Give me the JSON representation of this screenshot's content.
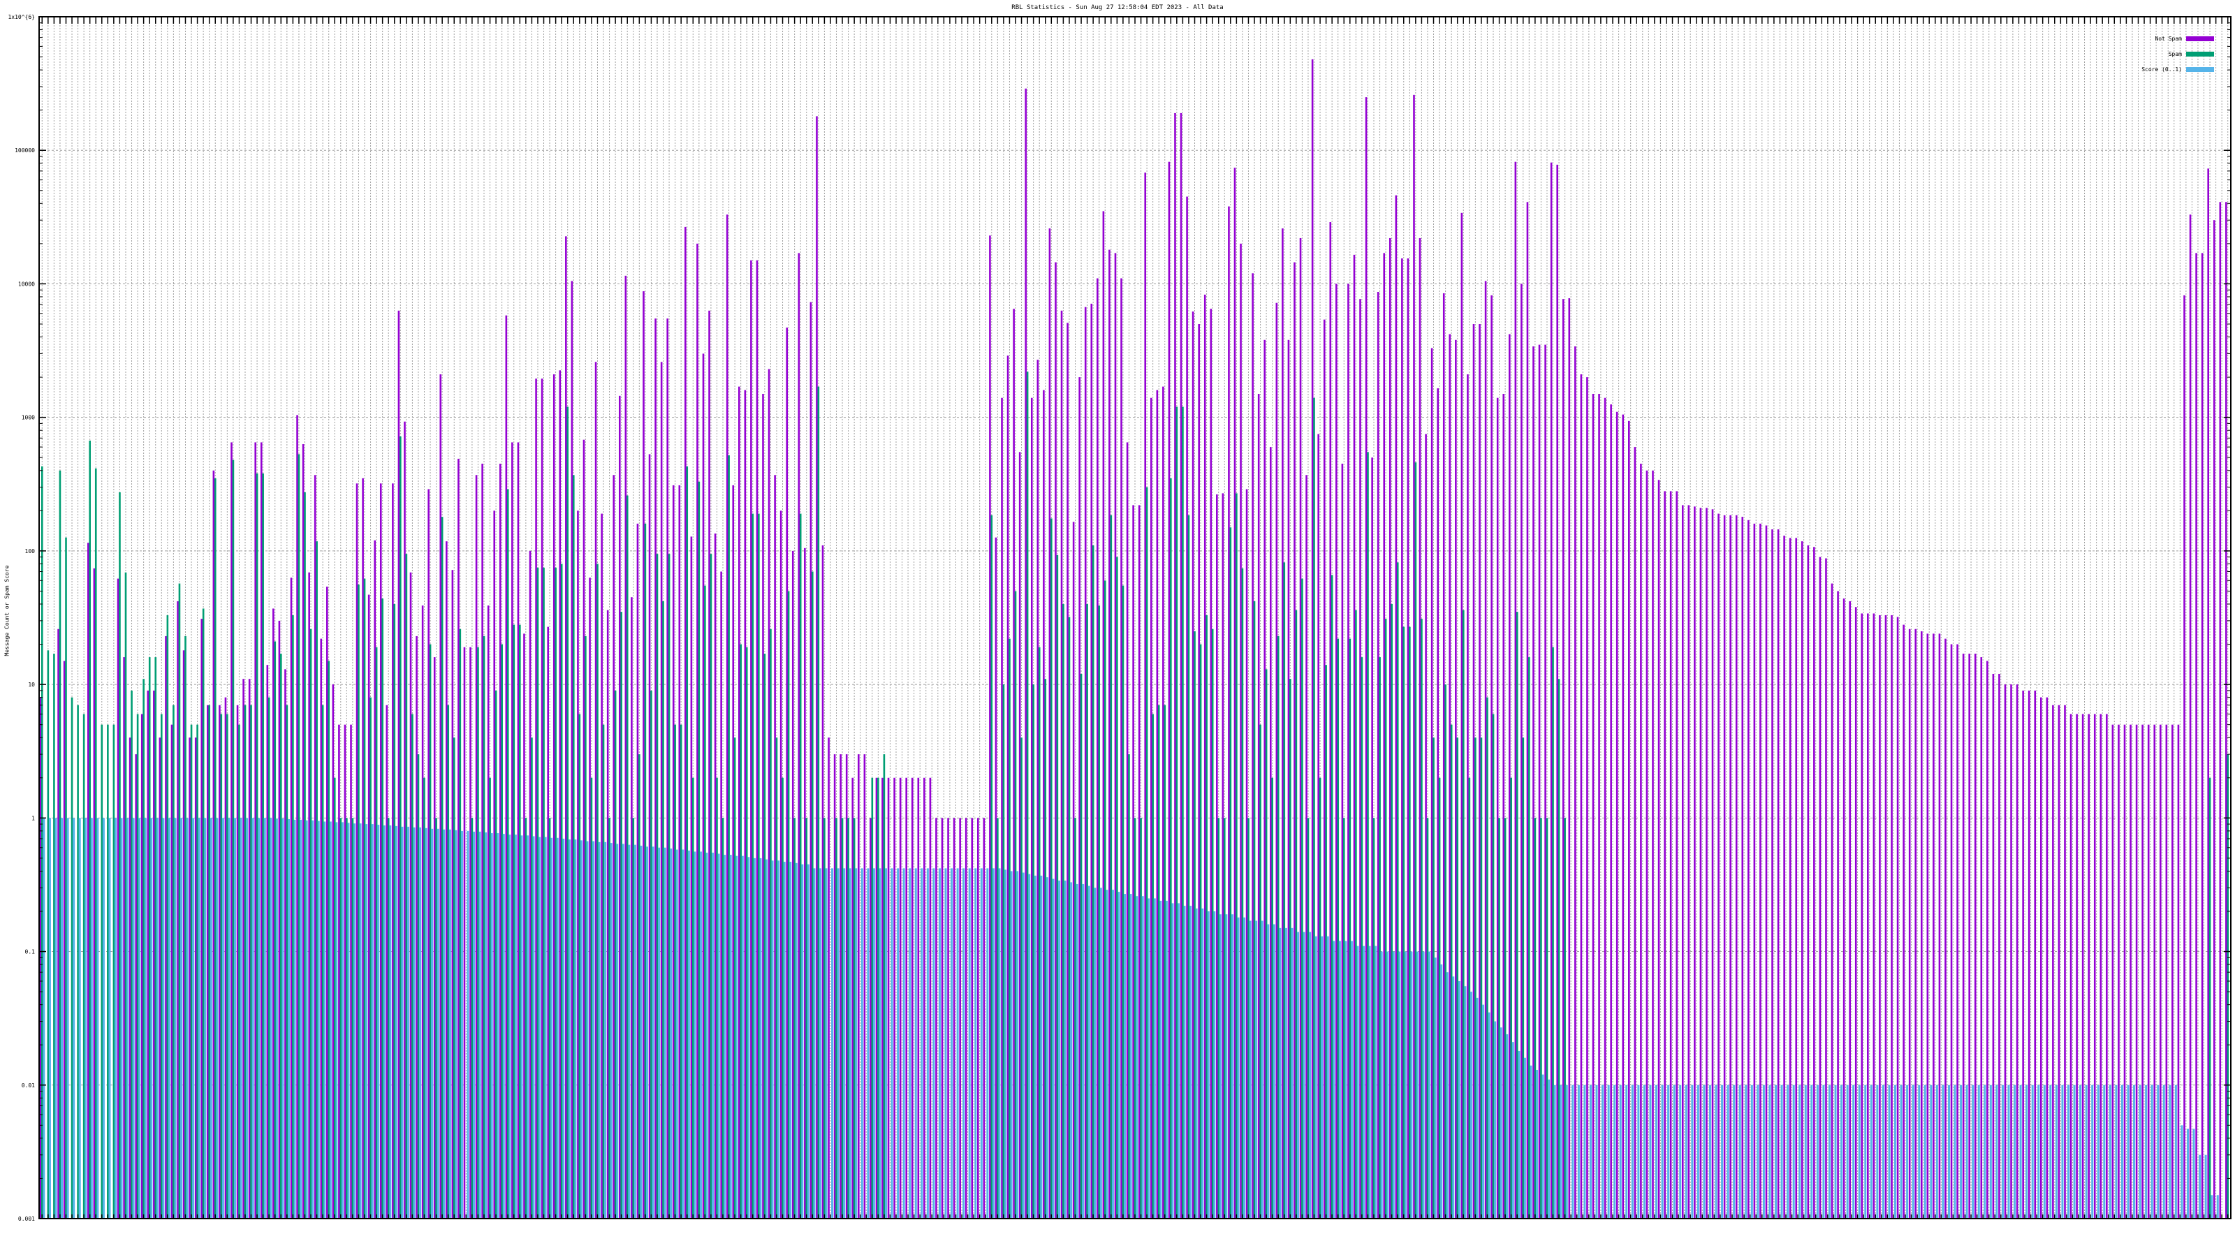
{
  "chart_data": {
    "type": "bar",
    "title": "RBL Statistics - Sun Aug 27 12:58:04 EDT 2023 - All Data",
    "xlabel": "",
    "ylabel": "Message Count or Spam Score",
    "yscale": "log",
    "ylim": [
      0.001,
      1000000
    ],
    "yticks": [
      "0.001",
      "0.01",
      "0.1",
      "1",
      "10",
      "100",
      "1000",
      "10000",
      "100000",
      "1x10^{6}"
    ],
    "grid": true,
    "legend_position": "top-right",
    "series": [
      {
        "name": "Not Spam",
        "color": "#9400d3",
        "values": [
          8,
          0,
          0,
          26,
          15,
          0,
          0,
          0,
          115,
          74,
          0,
          0,
          0,
          62,
          16,
          4,
          3,
          6,
          9,
          9,
          4,
          23,
          5,
          42,
          18,
          4,
          4,
          31,
          7,
          400,
          7,
          8,
          650,
          7,
          11,
          11,
          650,
          650,
          14,
          37,
          30,
          13,
          63,
          1040,
          630,
          69,
          370,
          22,
          54,
          10,
          5,
          5,
          5,
          320,
          350,
          47,
          120,
          320,
          7,
          320,
          6300,
          930,
          69,
          23,
          39,
          290,
          16,
          2100,
          118,
          72,
          490,
          19,
          19,
          370,
          450,
          39,
          200,
          450,
          5800,
          650,
          650,
          24,
          100,
          1950,
          1950,
          27,
          2100,
          2250,
          22700,
          10500,
          200,
          680,
          63,
          2600,
          190,
          36,
          370,
          1450,
          11500,
          45,
          160,
          8800,
          530,
          5500,
          2600,
          5500,
          310,
          310,
          26700,
          128,
          20000,
          3000,
          6300,
          135,
          70,
          33000,
          310,
          1700,
          1600,
          15000,
          15000,
          1500,
          2300,
          370,
          200,
          4700,
          100,
          17000,
          105,
          7300,
          180000,
          110,
          4,
          3,
          3,
          3,
          2,
          3,
          3,
          1,
          2,
          2,
          2,
          2,
          2,
          2,
          2,
          2,
          2,
          2,
          1,
          1,
          1,
          1,
          1,
          1,
          1,
          1,
          1,
          23000,
          126,
          1400,
          2900,
          6500,
          550,
          290000,
          1400,
          2700,
          1600,
          26000,
          14500,
          6300,
          5100,
          165,
          2000,
          6700,
          7100,
          11000,
          35000,
          18000,
          17000,
          11000,
          650,
          220,
          220,
          68000,
          1400,
          1600,
          1700,
          82000,
          190000,
          190000,
          45000,
          6200,
          5000,
          8300,
          6500,
          265,
          270,
          38000,
          74000,
          20000,
          290,
          12000,
          1500,
          3800,
          600,
          7200,
          26000,
          3800,
          14500,
          22000,
          370,
          480000,
          750,
          5400,
          29000,
          10000,
          450,
          10000,
          16500,
          7700,
          250000,
          500,
          8700,
          17000,
          22000,
          46000,
          15500,
          15500,
          260000,
          22000,
          750,
          3300,
          1650,
          8500,
          4200,
          3800,
          34000,
          2100,
          5000,
          5000,
          10500,
          8200,
          1400,
          1500,
          4200,
          82000,
          10000,
          41000,
          3400,
          3500,
          3500,
          81000,
          78000,
          7700,
          7800,
          3400,
          2100,
          2000,
          1500,
          1500,
          1400,
          1250,
          1100,
          1050,
          940,
          600,
          450,
          400,
          400,
          340,
          280,
          280,
          280,
          220,
          220,
          215,
          210,
          210,
          205,
          190,
          185,
          185,
          185,
          180,
          170,
          160,
          160,
          155,
          145,
          145,
          130,
          125,
          125,
          118,
          110,
          107,
          90,
          88,
          57,
          50,
          44,
          42,
          38,
          34,
          34,
          34,
          33,
          33,
          33,
          32,
          28,
          26,
          26,
          25,
          24,
          24,
          24,
          22,
          20,
          20,
          17,
          17,
          17,
          16,
          15,
          12,
          12,
          10,
          10,
          10,
          9,
          9,
          9,
          8,
          8,
          7,
          7,
          7,
          6,
          6,
          6,
          6,
          6,
          6,
          6,
          5,
          5,
          5,
          5,
          5,
          5,
          5,
          5,
          5,
          5,
          5,
          5,
          8200,
          33000,
          17000,
          17000,
          73000,
          30000,
          41000,
          41000
        ]
      },
      {
        "name": "Spam",
        "color": "#009e73",
        "values": [
          430,
          18,
          17,
          400,
          126,
          8,
          7,
          6,
          670,
          415,
          5,
          5,
          5,
          275,
          69,
          9,
          6,
          11,
          16,
          16,
          6,
          33,
          7,
          57,
          23,
          5,
          5,
          37,
          7,
          350,
          6,
          6,
          480,
          5,
          7,
          7,
          380,
          380,
          8,
          21,
          17,
          7,
          33,
          530,
          275,
          26,
          118,
          7,
          15,
          2,
          1,
          1,
          1,
          56,
          62,
          8,
          19,
          44,
          1,
          40,
          720,
          95,
          6,
          3,
          2,
          20,
          1,
          180,
          7,
          4,
          26,
          0,
          1,
          19,
          23,
          2,
          9,
          20,
          290,
          28,
          28,
          1,
          4,
          75,
          75,
          1,
          75,
          80,
          1200,
          370,
          6,
          23,
          2,
          80,
          5,
          1,
          9,
          35,
          260,
          1,
          3,
          160,
          9,
          95,
          42,
          95,
          5,
          5,
          430,
          2,
          330,
          55,
          95,
          2,
          1,
          520,
          4,
          20,
          19,
          190,
          190,
          17,
          26,
          4,
          2,
          50,
          1,
          190,
          1,
          70,
          1700,
          1,
          0,
          1,
          1,
          1,
          1,
          0,
          0,
          2,
          2,
          3,
          0,
          0,
          0,
          0,
          0,
          0,
          0,
          0,
          0,
          0,
          0,
          0,
          0,
          0,
          0,
          0,
          0,
          185,
          1,
          10,
          22,
          50,
          4,
          2200,
          10,
          19,
          11,
          175,
          93,
          40,
          32,
          1,
          12,
          40,
          110,
          39,
          60,
          185,
          90,
          55,
          3,
          1,
          1,
          300,
          6,
          7,
          7,
          350,
          1200,
          1200,
          185,
          25,
          20,
          33,
          26,
          1,
          1,
          150,
          270,
          74,
          1,
          42,
          5,
          13,
          2,
          23,
          82,
          11,
          36,
          62,
          1,
          1400,
          2,
          14,
          66,
          22,
          1,
          22,
          36,
          16,
          550,
          1,
          16,
          31,
          40,
          82,
          27,
          27,
          460,
          31,
          1,
          4,
          2,
          10,
          5,
          4,
          36,
          2,
          4,
          4,
          8,
          6,
          1,
          1,
          2,
          35,
          4,
          16,
          1,
          1,
          1,
          19,
          11,
          1,
          0,
          0,
          0,
          0,
          0,
          0,
          0,
          0,
          0,
          0,
          0,
          0,
          0,
          0,
          0,
          0,
          0,
          0,
          0,
          0,
          0,
          0,
          0,
          0,
          0,
          0,
          0,
          0,
          0,
          0,
          0,
          0,
          0,
          0,
          0,
          0,
          0,
          0,
          0,
          0,
          0,
          0,
          0,
          0,
          0,
          0,
          0,
          0,
          0,
          0,
          0,
          0,
          0,
          0,
          0,
          0,
          0,
          0,
          0,
          0,
          0,
          0,
          0,
          0,
          0,
          0,
          0,
          0,
          0,
          0,
          0,
          0,
          0,
          0,
          0,
          0,
          0,
          0,
          0,
          0,
          0,
          0,
          0,
          0,
          0,
          0,
          0,
          0,
          0,
          0,
          0,
          0,
          0,
          0,
          0,
          0,
          0,
          0,
          0,
          0,
          0,
          0,
          0,
          0,
          0,
          0,
          0,
          2,
          0,
          0,
          3,
          0,
          0,
          0
        ]
      },
      {
        "name": "Score (0..1)",
        "color": "#56b4e9",
        "values": [
          1,
          1,
          1,
          1,
          1,
          1,
          1,
          1,
          1,
          1,
          1,
          1,
          1,
          1,
          1,
          1,
          1,
          1,
          1,
          1,
          1,
          1,
          1,
          1,
          1,
          1,
          1,
          1,
          1,
          1,
          1,
          1,
          1,
          1,
          1,
          1,
          1,
          1,
          1,
          0.99,
          0.99,
          0.98,
          0.97,
          0.97,
          0.96,
          0.96,
          0.95,
          0.94,
          0.94,
          0.93,
          0.93,
          0.92,
          0.91,
          0.91,
          0.9,
          0.9,
          0.89,
          0.88,
          0.88,
          0.87,
          0.86,
          0.86,
          0.85,
          0.85,
          0.84,
          0.83,
          0.83,
          0.82,
          0.82,
          0.81,
          0.8,
          0.8,
          0.79,
          0.79,
          0.78,
          0.77,
          0.77,
          0.76,
          0.75,
          0.75,
          0.74,
          0.74,
          0.73,
          0.72,
          0.72,
          0.71,
          0.71,
          0.7,
          0.69,
          0.69,
          0.68,
          0.67,
          0.67,
          0.66,
          0.66,
          0.65,
          0.64,
          0.64,
          0.63,
          0.63,
          0.62,
          0.61,
          0.61,
          0.6,
          0.6,
          0.59,
          0.58,
          0.58,
          0.57,
          0.56,
          0.56,
          0.55,
          0.55,
          0.54,
          0.53,
          0.53,
          0.52,
          0.52,
          0.51,
          0.5,
          0.5,
          0.49,
          0.48,
          0.48,
          0.47,
          0.47,
          0.46,
          0.45,
          0.45,
          0.42,
          0.42,
          0.42,
          0.42,
          0.42,
          0.42,
          0.42,
          0.42,
          0.42,
          0.42,
          0.42,
          0.42,
          0.42,
          0.42,
          0.42,
          0.42,
          0.42,
          0.42,
          0.42,
          0.42,
          0.42,
          0.42,
          0.42,
          0.42,
          0.42,
          0.42,
          0.42,
          0.42,
          0.42,
          0.42,
          0.42,
          0.42,
          0.41,
          0.4,
          0.4,
          0.39,
          0.38,
          0.37,
          0.37,
          0.36,
          0.35,
          0.34,
          0.34,
          0.33,
          0.32,
          0.32,
          0.31,
          0.3,
          0.3,
          0.29,
          0.29,
          0.28,
          0.27,
          0.27,
          0.26,
          0.26,
          0.25,
          0.25,
          0.24,
          0.24,
          0.23,
          0.23,
          0.22,
          0.22,
          0.21,
          0.21,
          0.2,
          0.2,
          0.19,
          0.19,
          0.19,
          0.18,
          0.18,
          0.17,
          0.17,
          0.17,
          0.16,
          0.16,
          0.15,
          0.15,
          0.15,
          0.14,
          0.14,
          0.14,
          0.13,
          0.13,
          0.13,
          0.12,
          0.12,
          0.12,
          0.12,
          0.11,
          0.11,
          0.11,
          0.11,
          0.1,
          0.1,
          0.1,
          0.1,
          0.1,
          0.1,
          0.1,
          0.1,
          0.1,
          0.09,
          0.08,
          0.07,
          0.065,
          0.06,
          0.055,
          0.05,
          0.045,
          0.04,
          0.035,
          0.03,
          0.027,
          0.024,
          0.021,
          0.018,
          0.016,
          0.014,
          0.013,
          0.012,
          0.011,
          0.01,
          0.01,
          0.01,
          0.01,
          0.01,
          0.01,
          0.01,
          0.01,
          0.01,
          0.01,
          0.01,
          0.01,
          0.01,
          0.01,
          0.01,
          0.01,
          0.01,
          0.01,
          0.01,
          0.01,
          0.01,
          0.01,
          0.01,
          0.01,
          0.01,
          0.01,
          0.01,
          0.01,
          0.01,
          0.01,
          0.01,
          0.01,
          0.01,
          0.01,
          0.01,
          0.01,
          0.01,
          0.01,
          0.01,
          0.01,
          0.01,
          0.01,
          0.01,
          0.01,
          0.01,
          0.01,
          0.01,
          0.01,
          0.01,
          0.01,
          0.01,
          0.01,
          0.01,
          0.01,
          0.01,
          0.01,
          0.01,
          0.01,
          0.01,
          0.01,
          0.01,
          0.01,
          0.01,
          0.01,
          0.01,
          0.01,
          0.01,
          0.01,
          0.01,
          0.01,
          0.01,
          0.01,
          0.01,
          0.01,
          0.01,
          0.01,
          0.01,
          0.01,
          0.01,
          0.01,
          0.01,
          0.01,
          0.01,
          0.01,
          0.01,
          0.01,
          0.01,
          0.01,
          0.01,
          0.01,
          0.01,
          0.01,
          0.01,
          0.01,
          0.01,
          0.01,
          0.01,
          0.01,
          0.01,
          0.01,
          0.01,
          0.01,
          0.01,
          0.01,
          0.01,
          0.005,
          0.0047,
          0.0047,
          0.003,
          0.003,
          0.0015,
          0.0015
        ]
      }
    ]
  }
}
